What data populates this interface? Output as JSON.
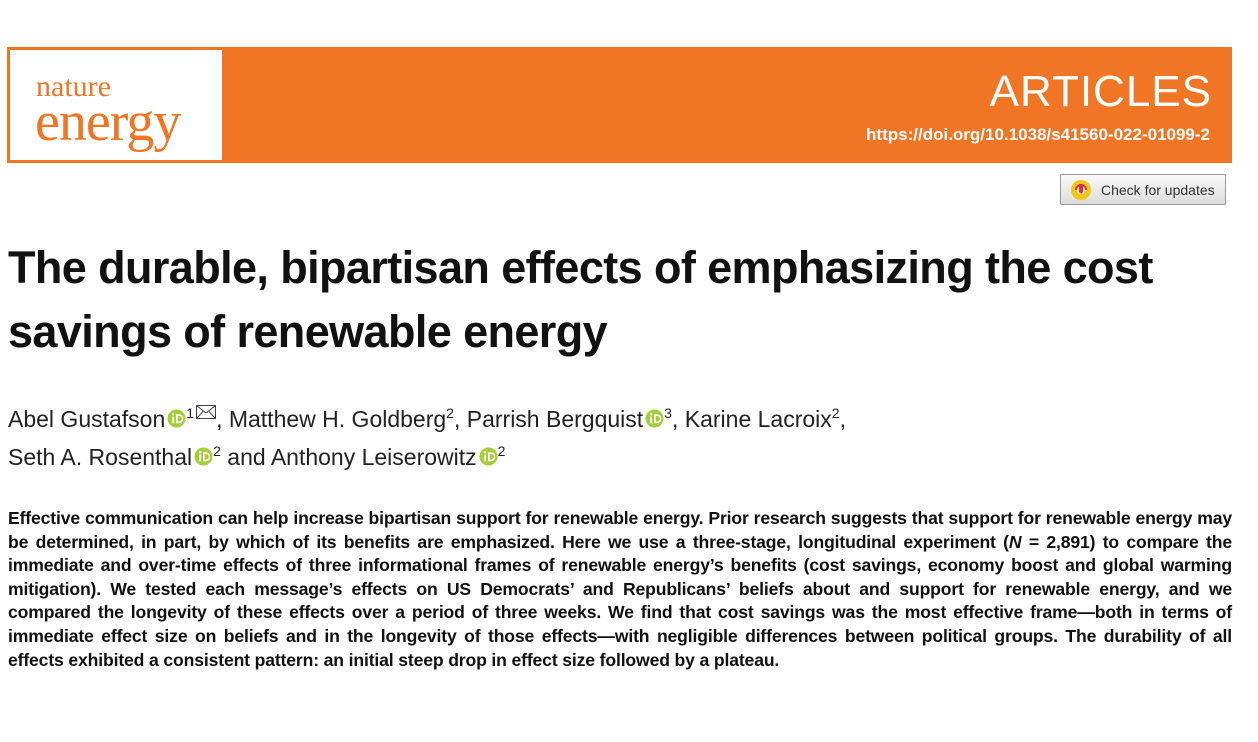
{
  "header": {
    "journal_line1": "nature",
    "journal_line2": "energy",
    "section": "ARTICLES",
    "doi": "https://doi.org/10.1038/s41560-022-01099-2"
  },
  "updates_button": "Check for updates",
  "title": "The durable, bipartisan effects of emphasizing the cost savings of renewable energy",
  "author_lines": [
    [
      {
        "name": "Abel Gustafson",
        "orcid": true,
        "affiliation": "1",
        "corresponding": true,
        "after": ", "
      },
      {
        "name": "Matthew H. Goldberg",
        "orcid": false,
        "affiliation": "2",
        "corresponding": false,
        "after": ", "
      },
      {
        "name": "Parrish Bergquist",
        "orcid": true,
        "affiliation": "3",
        "corresponding": false,
        "after": ", "
      },
      {
        "name": "Karine Lacroix",
        "orcid": false,
        "affiliation": "2",
        "corresponding": false,
        "after": ","
      }
    ],
    [
      {
        "name": "Seth A. Rosenthal",
        "orcid": true,
        "affiliation": "2",
        "corresponding": false,
        "after": " and "
      },
      {
        "name": "Anthony Leiserowitz",
        "orcid": true,
        "affiliation": "2",
        "corresponding": false,
        "after": ""
      }
    ]
  ],
  "abstract": {
    "before": "Effective communication can help increase bipartisan support for renewable energy. Prior research suggests that support for renewable energy may be determined, in part, by which of its benefits are emphasized. Here we use a three-stage, longitudinal experiment (",
    "italic": "N",
    "after": " = 2,891) to compare the immediate and over-time effects of three informational frames of renewable energy’s benefits (cost savings, economy boost and global warming mitigation). We tested each message’s effects on US Democrats’ and Republicans’ beliefs about and support for renewable energy, and we compared the longevity of these effects over a period of three weeks. We find that cost savings was the most effective frame—both in terms of immediate effect size on beliefs and in the longevity of those effects—with negligible differences between political groups. The durability of all effects exhibited a consistent pattern: an initial steep drop in effect size followed by a plateau."
  }
}
